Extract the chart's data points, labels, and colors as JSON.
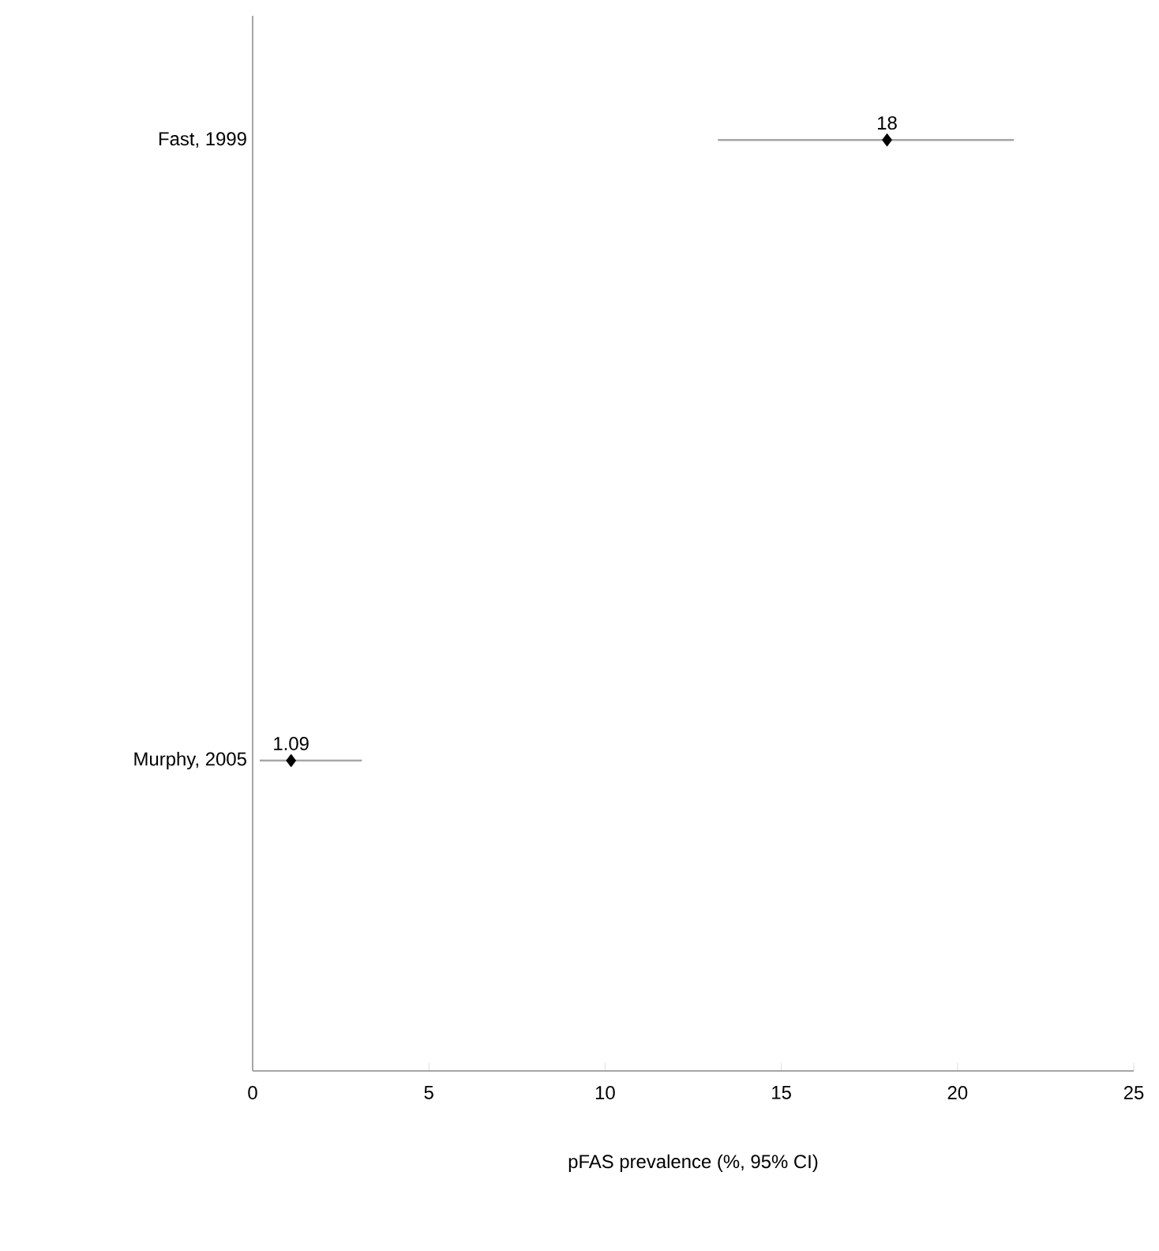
{
  "chart_data": {
    "type": "scatter",
    "orientation": "horizontal",
    "categories": [
      "Fast, 1999",
      "Murphy, 2005"
    ],
    "values": [
      18,
      1.09
    ],
    "errors": [
      [
        13.2,
        21.6
      ],
      [
        0.2,
        3.1
      ]
    ],
    "color": "#000000",
    "marker": "diamond",
    "data_labels": true,
    "xlabel": "pFAS prevalence (%, 95% CI)",
    "xlim": [
      0,
      25
    ],
    "xticks": [
      0,
      5,
      10,
      15,
      20,
      25
    ],
    "grid": false
  }
}
